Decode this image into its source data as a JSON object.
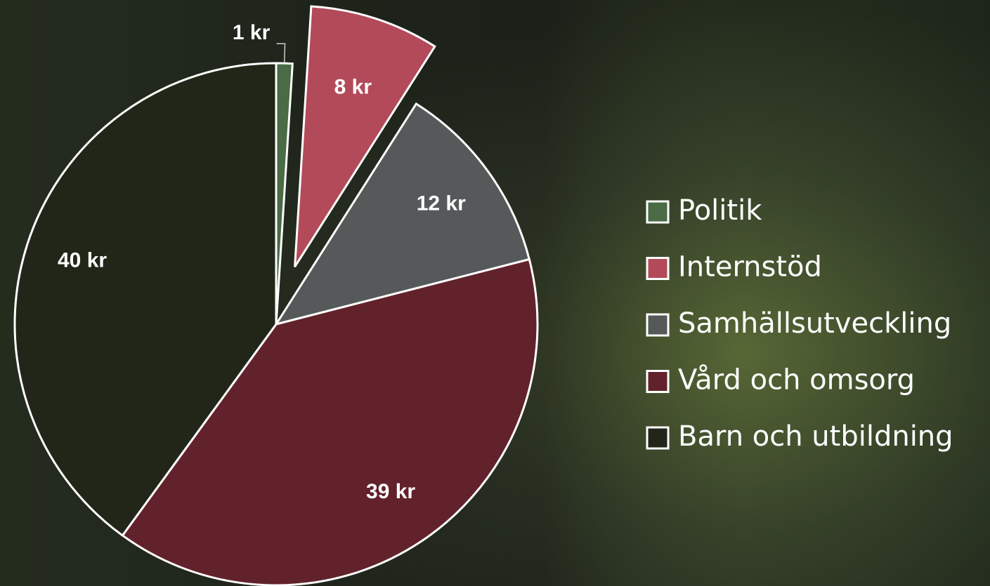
{
  "chart_data": {
    "type": "pie",
    "categories": [
      "Politik",
      "Internstöd",
      "Samhällsutveckling",
      "Vård och omsorg",
      "Barn och utbildning"
    ],
    "values": [
      1,
      8,
      12,
      39,
      40
    ],
    "value_labels": [
      "1 kr",
      "8 kr",
      "12 kr",
      "39 kr",
      "40 kr"
    ],
    "colors": [
      "#4a6b45",
      "#b34a5a",
      "#55595a",
      "#62222b",
      "#212619"
    ],
    "exploded": [
      false,
      true,
      false,
      false,
      false
    ],
    "legend": "right"
  }
}
